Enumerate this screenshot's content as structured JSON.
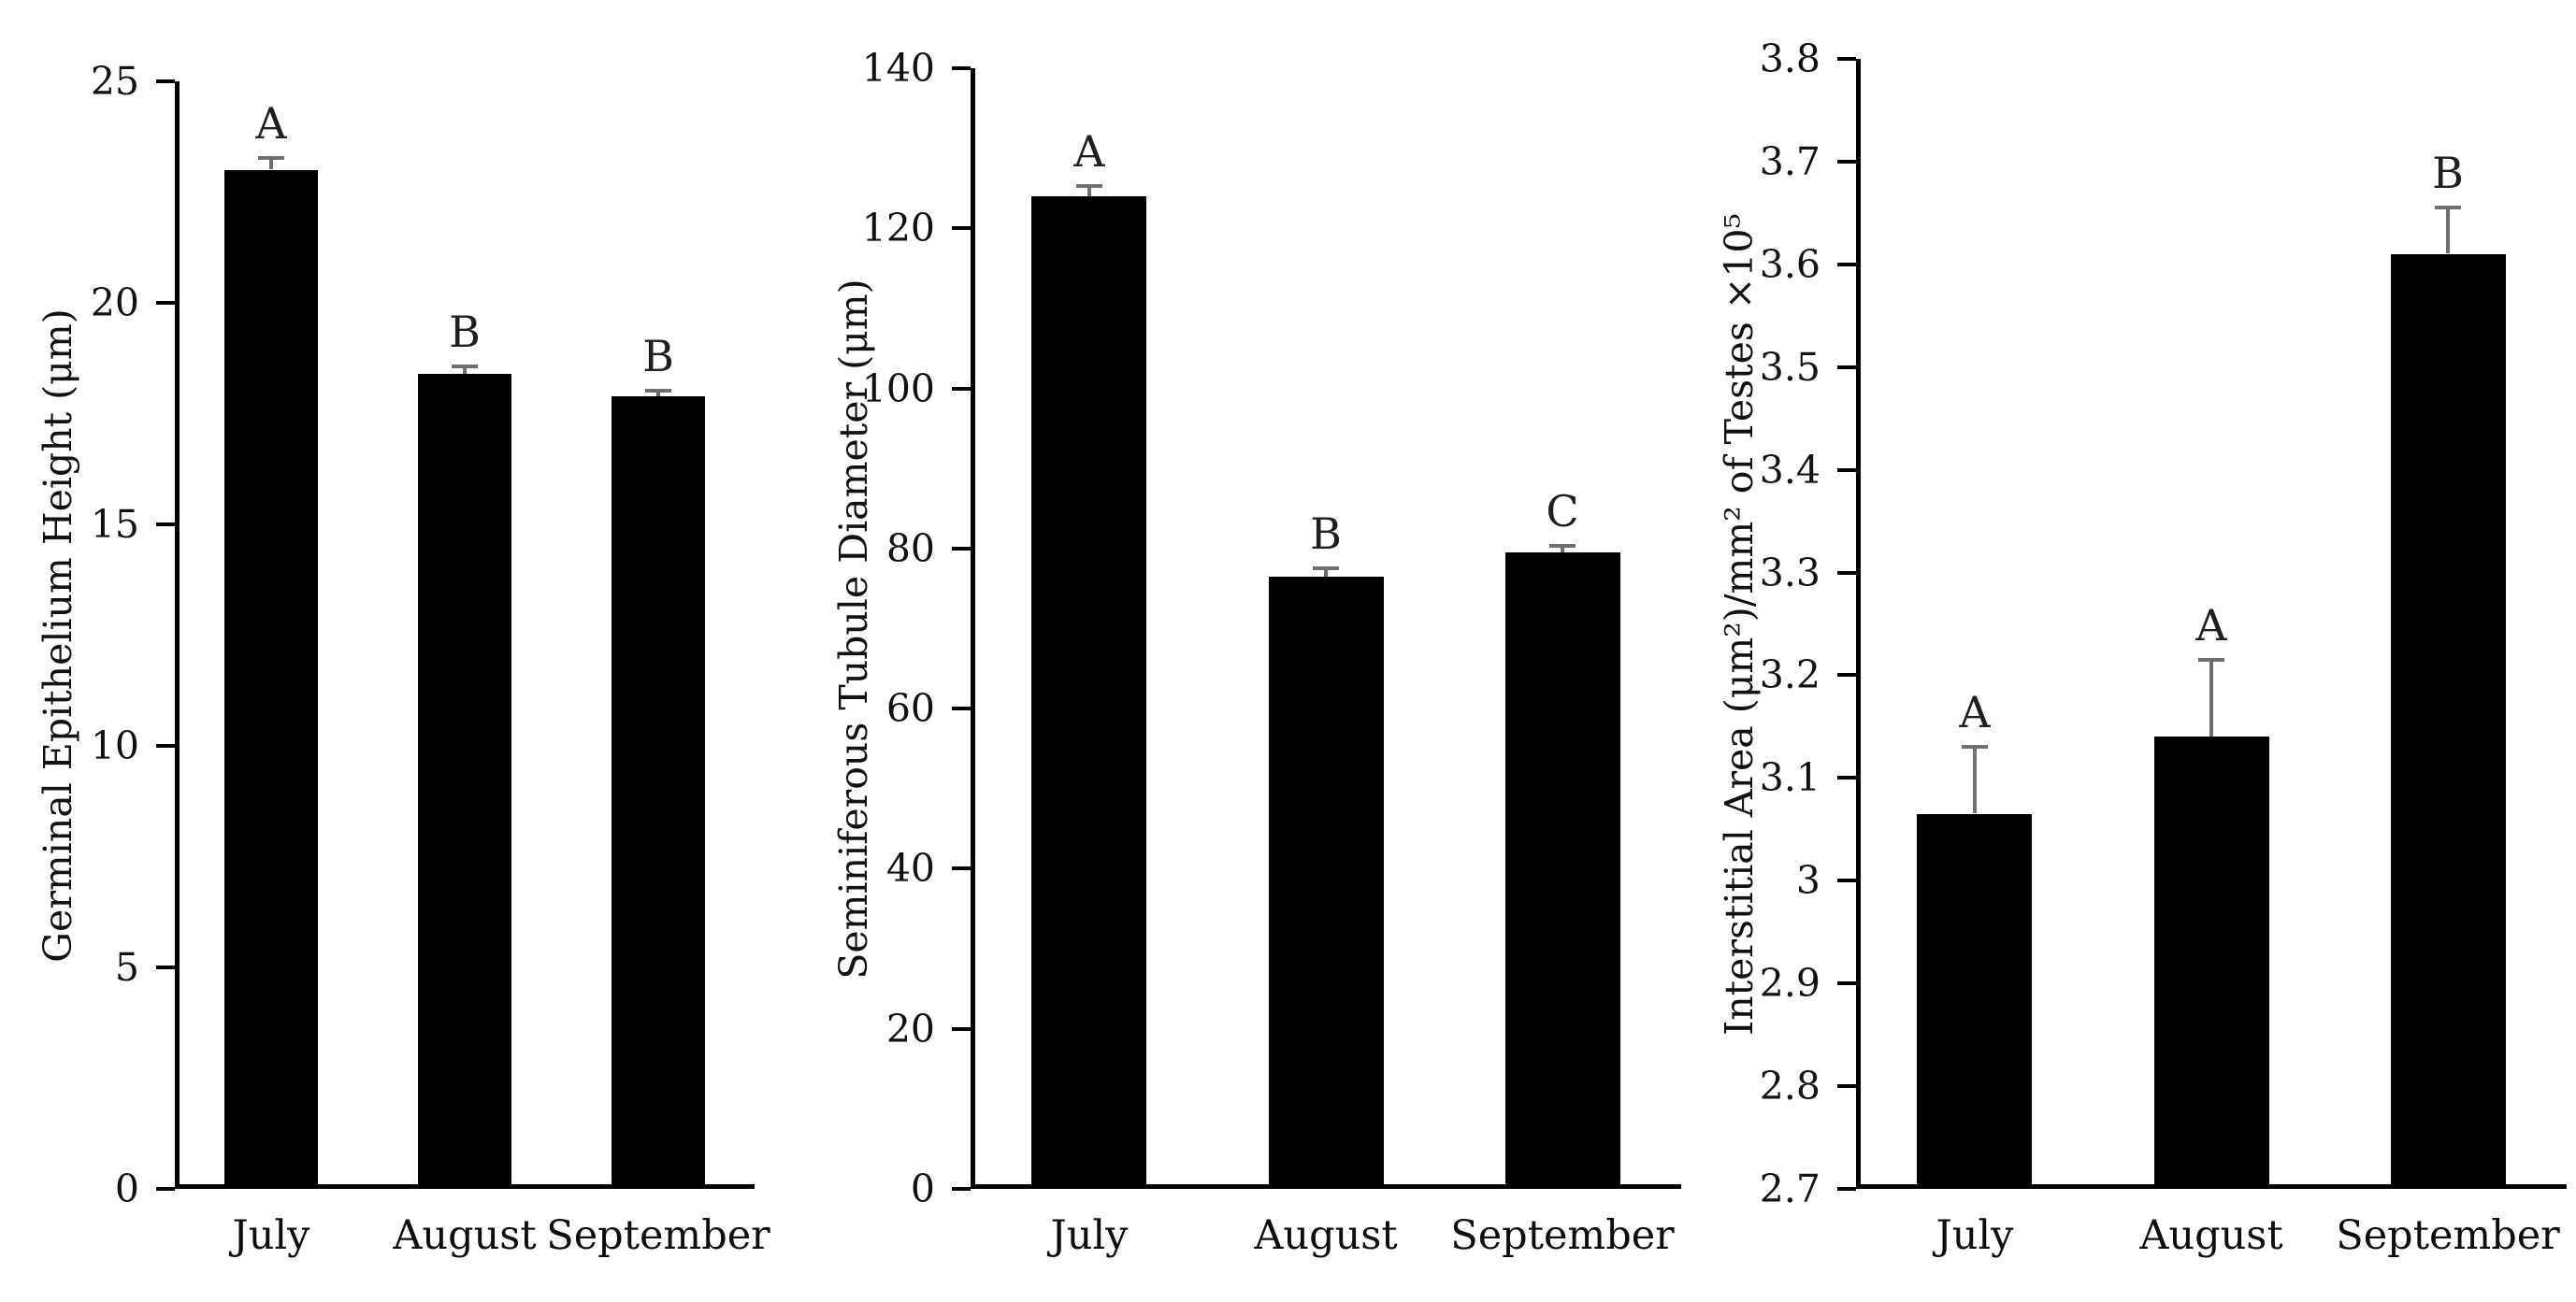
{
  "figure": {
    "background_color": "#ffffff",
    "bar_color": "#000000",
    "error_bar_color": "#6f6f6f",
    "axis_color": "#000000",
    "text_color": "#111111",
    "grid": false,
    "legend": false
  },
  "chart_data": [
    {
      "type": "bar",
      "title": "",
      "xlabel": "",
      "ylabel": "Germinal Epithelium Height (μm)",
      "categories": [
        "July",
        "August",
        "September"
      ],
      "values": [
        23.0,
        18.4,
        17.9
      ],
      "errors_plus": [
        0.26,
        0.16,
        0.12
      ],
      "sig_letters": [
        "A",
        "B",
        "B"
      ],
      "ylim": [
        0,
        25
      ],
      "ytick_step": 5,
      "yticks": [
        {
          "v": 0,
          "label": "0"
        },
        {
          "v": 5,
          "label": "5"
        },
        {
          "v": 10,
          "label": "10"
        },
        {
          "v": 15,
          "label": "15"
        },
        {
          "v": 20,
          "label": "20"
        },
        {
          "v": 25,
          "label": "25"
        }
      ]
    },
    {
      "type": "bar",
      "title": "",
      "xlabel": "",
      "ylabel": "Seminiferous Tubule Diameter (μm)",
      "categories": [
        "July",
        "August",
        "September"
      ],
      "values": [
        124.0,
        76.5,
        79.5
      ],
      "errors_plus": [
        1.3,
        1.0,
        0.8
      ],
      "sig_letters": [
        "A",
        "B",
        "C"
      ],
      "ylim": [
        0,
        140
      ],
      "ytick_step": 20,
      "yticks": [
        {
          "v": 0,
          "label": "0"
        },
        {
          "v": 20,
          "label": "20"
        },
        {
          "v": 40,
          "label": "40"
        },
        {
          "v": 60,
          "label": "60"
        },
        {
          "v": 80,
          "label": "80"
        },
        {
          "v": 100,
          "label": "100"
        },
        {
          "v": 120,
          "label": "120"
        },
        {
          "v": 140,
          "label": "140"
        }
      ]
    },
    {
      "type": "bar",
      "title": "",
      "xlabel": "",
      "ylabel": "Interstitial Area (μm²)/mm² of Testes ×10⁵",
      "categories": [
        "July",
        "August",
        "September"
      ],
      "values": [
        3.065,
        3.14,
        3.61
      ],
      "errors_plus": [
        0.065,
        0.075,
        0.045
      ],
      "sig_letters": [
        "A",
        "A",
        "B"
      ],
      "ylim": [
        2.7,
        3.8
      ],
      "ytick_step": 0.1,
      "yticks": [
        {
          "v": 2.7,
          "label": "2.7"
        },
        {
          "v": 2.8,
          "label": "2.8"
        },
        {
          "v": 2.9,
          "label": "2.9"
        },
        {
          "v": 3.0,
          "label": "3"
        },
        {
          "v": 3.1,
          "label": "3.1"
        },
        {
          "v": 3.2,
          "label": "3.2"
        },
        {
          "v": 3.3,
          "label": "3.3"
        },
        {
          "v": 3.4,
          "label": "3.4"
        },
        {
          "v": 3.5,
          "label": "3.5"
        },
        {
          "v": 3.6,
          "label": "3.6"
        },
        {
          "v": 3.7,
          "label": "3.7"
        },
        {
          "v": 3.8,
          "label": "3.8"
        }
      ]
    }
  ]
}
